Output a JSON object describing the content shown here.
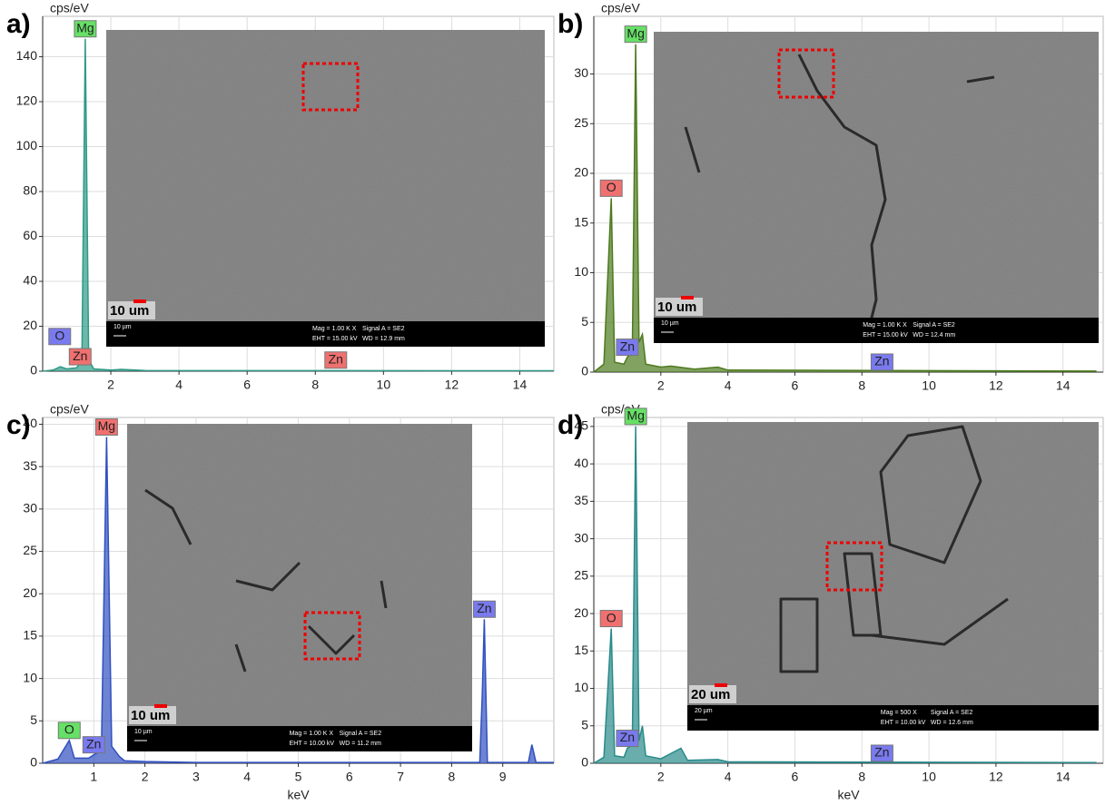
{
  "chart_data": [
    {
      "type": "line",
      "label": "a)",
      "y_label": "cps/eV",
      "xlim": [
        0,
        15
      ],
      "ylim": [
        0,
        158
      ],
      "xticks": [
        2,
        4,
        6,
        8,
        10,
        12,
        14
      ],
      "yticks": [
        0,
        20,
        40,
        60,
        80,
        100,
        120,
        140
      ],
      "grid": true,
      "color": "#2f9a86",
      "x": [
        0,
        0.3,
        0.52,
        0.7,
        1.0,
        1.15,
        1.25,
        1.35,
        1.5,
        2,
        2.3,
        3,
        15
      ],
      "values": [
        0,
        0.5,
        2,
        1,
        1.5,
        5,
        148,
        5,
        1,
        0.5,
        0.8,
        0.3,
        0.2
      ],
      "annotations": [
        {
          "text": "Mg",
          "x": 1.25,
          "y": 148,
          "color": "#66e066"
        },
        {
          "text": "O",
          "x": 0.5,
          "y": 11,
          "color": "#7a7aef"
        },
        {
          "text": "Zn",
          "x": 1.1,
          "y": 2,
          "color": "#f07070"
        },
        {
          "text": "Zn",
          "x": 8.6,
          "y": 0.5,
          "color": "#f07070"
        }
      ],
      "image": {
        "scale_label": "10 um",
        "scale_bar": "10 µm",
        "mag": "Mag =   1.00 K X",
        "signal": "Signal A = SE2",
        "eht": "EHT = 15.00 kV",
        "wd": "WD = 12.9 mm"
      }
    },
    {
      "type": "line",
      "label": "b)",
      "y_label": "cps/eV",
      "xlim": [
        0,
        15.2
      ],
      "ylim": [
        0,
        35.8
      ],
      "xticks": [
        2,
        4,
        6,
        8,
        10,
        12,
        14
      ],
      "yticks": [
        0,
        5,
        10,
        15,
        20,
        25,
        30
      ],
      "grid": true,
      "color": "#4d7a1e",
      "x": [
        0,
        0.3,
        0.52,
        0.62,
        0.9,
        1.0,
        1.15,
        1.25,
        1.35,
        1.45,
        1.55,
        2,
        2.3,
        3,
        3.7,
        4,
        15
      ],
      "values": [
        0,
        0.8,
        17.5,
        1,
        0.8,
        1.5,
        2,
        33,
        3,
        3.8,
        0.8,
        0.5,
        0.6,
        0.3,
        0.5,
        0.2,
        0.1
      ],
      "annotations": [
        {
          "text": "Mg",
          "x": 1.25,
          "y": 33,
          "color": "#66e066"
        },
        {
          "text": "O",
          "x": 0.52,
          "y": 17.5,
          "color": "#f07070"
        },
        {
          "text": "Zn",
          "x": 1.0,
          "y": 1.5,
          "color": "#7a7aef"
        },
        {
          "text": "Zn",
          "x": 8.6,
          "y": 0,
          "color": "#7a7aef"
        }
      ],
      "image": {
        "scale_label": "10 um",
        "scale_bar": "10 µm",
        "mag": "Mag =   1.00 K X",
        "signal": "Signal A = SE2",
        "eht": "EHT = 15.00 kV",
        "wd": "WD = 12.4 mm"
      }
    },
    {
      "type": "line",
      "label": "c)",
      "y_label": "cps/eV",
      "x_label": "keV",
      "xlim": [
        0,
        10
      ],
      "ylim": [
        0,
        40.8
      ],
      "xticks": [
        1,
        2,
        3,
        4,
        5,
        6,
        7,
        8,
        9
      ],
      "yticks": [
        0,
        5,
        10,
        15,
        20,
        25,
        30,
        35,
        40
      ],
      "grid": true,
      "color": "#3050c0",
      "x": [
        0,
        0.3,
        0.52,
        0.62,
        0.9,
        1.0,
        1.15,
        1.25,
        1.35,
        1.5,
        1.6,
        2,
        3,
        8.55,
        8.6,
        8.64,
        8.7,
        9.5,
        9.57,
        9.65,
        10
      ],
      "values": [
        0,
        0.5,
        2.7,
        0.6,
        0.6,
        1,
        1.5,
        38.5,
        2,
        0.8,
        0.3,
        0.2,
        0.1,
        0.1,
        8.3,
        17,
        0.1,
        0.1,
        2.2,
        0.1,
        0.1
      ],
      "annotations": [
        {
          "text": "Mg",
          "x": 1.25,
          "y": 38.5,
          "color": "#f07070"
        },
        {
          "text": "O",
          "x": 0.52,
          "y": 2.7,
          "color": "#66e066"
        },
        {
          "text": "Zn",
          "x": 1.0,
          "y": 1,
          "color": "#7a7aef"
        },
        {
          "text": "Zn",
          "x": 8.64,
          "y": 17,
          "color": "#7a7aef"
        }
      ],
      "image": {
        "scale_label": "10 um",
        "scale_bar": "10 µm",
        "mag": "Mag =   1.00 K X",
        "signal": "Signal A = SE2",
        "eht": "EHT = 10.00 kV",
        "wd": "WD = 11.2 mm"
      }
    },
    {
      "type": "line",
      "label": "d)",
      "y_label": "cps/eV",
      "x_label": "keV",
      "xlim": [
        0,
        15.2
      ],
      "ylim": [
        0,
        46.2
      ],
      "xticks": [
        2,
        4,
        6,
        8,
        10,
        12,
        14
      ],
      "yticks": [
        0,
        5,
        10,
        15,
        20,
        25,
        30,
        35,
        40,
        45
      ],
      "grid": true,
      "color": "#2a8a8a",
      "x": [
        0,
        0.3,
        0.52,
        0.62,
        0.9,
        1.0,
        1.15,
        1.25,
        1.35,
        1.45,
        1.55,
        2,
        2.6,
        2.8,
        3.7,
        4,
        15
      ],
      "values": [
        0,
        0.8,
        18,
        1,
        0.8,
        2,
        2.5,
        45,
        3,
        5,
        1,
        0.6,
        2,
        0.4,
        0.5,
        0.2,
        0.1
      ],
      "annotations": [
        {
          "text": "Mg",
          "x": 1.25,
          "y": 45,
          "color": "#66e066"
        },
        {
          "text": "O",
          "x": 0.52,
          "y": 18,
          "color": "#f07070"
        },
        {
          "text": "Zn",
          "x": 1.0,
          "y": 2,
          "color": "#7a7aef"
        },
        {
          "text": "Zn",
          "x": 8.6,
          "y": 0,
          "color": "#7a7aef"
        }
      ],
      "image": {
        "scale_label": "20 um",
        "scale_bar": "20 µm",
        "mag": "Mag =   500 X",
        "signal": "Signal A = SE2",
        "eht": "EHT = 10.00 kV",
        "wd": "WD = 12.6 mm"
      }
    }
  ]
}
